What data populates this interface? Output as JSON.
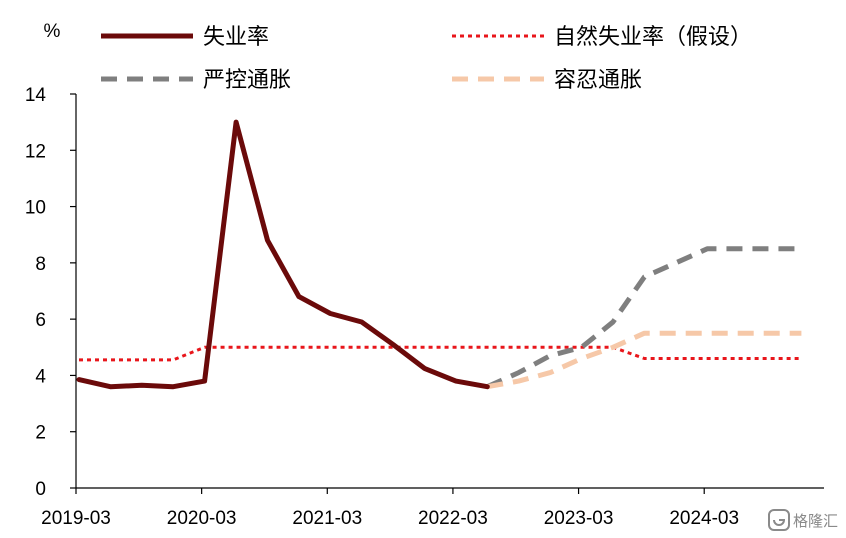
{
  "chart_data": {
    "type": "line",
    "unit_label": "%",
    "x": [
      "2019-03",
      "2019-06",
      "2019-09",
      "2019-12",
      "2020-03",
      "2020-06",
      "2020-09",
      "2020-12",
      "2021-03",
      "2021-06",
      "2021-09",
      "2021-12",
      "2022-03",
      "2022-06",
      "2022-09",
      "2022-12",
      "2023-03",
      "2023-06",
      "2023-09",
      "2023-12",
      "2024-03",
      "2024-06",
      "2024-09",
      "2024-12"
    ],
    "x_tick_labels": [
      "2019-03",
      "2020-03",
      "2021-03",
      "2022-03",
      "2023-03",
      "2024-03"
    ],
    "ylim": [
      0,
      14
    ],
    "y_ticks": [
      0,
      2,
      4,
      6,
      8,
      10,
      12,
      14
    ],
    "grid": false,
    "legend_position": "top",
    "series": [
      {
        "name": "失业率",
        "style": "solid",
        "color": "#6b0a0a",
        "values": [
          3.85,
          3.6,
          3.65,
          3.6,
          3.8,
          13.0,
          8.8,
          6.8,
          6.2,
          5.9,
          5.1,
          4.25,
          3.8,
          3.6,
          null,
          null,
          null,
          null,
          null,
          null,
          null,
          null,
          null,
          null
        ]
      },
      {
        "name": "自然失业率（假设）",
        "style": "dotted",
        "color": "#e8161b",
        "values": [
          4.55,
          4.55,
          4.55,
          4.55,
          5.0,
          5.0,
          5.0,
          5.0,
          5.0,
          5.0,
          5.0,
          5.0,
          5.0,
          5.0,
          5.0,
          5.0,
          5.0,
          5.0,
          4.6,
          4.6,
          4.6,
          4.6,
          4.6,
          4.6
        ]
      },
      {
        "name": "严控通胀",
        "style": "dashed",
        "color": "#7f7f7f",
        "values": [
          null,
          null,
          null,
          null,
          null,
          null,
          null,
          null,
          null,
          null,
          null,
          null,
          null,
          3.6,
          4.1,
          4.7,
          5.0,
          5.9,
          7.5,
          8.0,
          8.5,
          8.5,
          8.5,
          8.5
        ]
      },
      {
        "name": "容忍通胀",
        "style": "dashed",
        "color": "#f6c8a8",
        "values": [
          null,
          null,
          null,
          null,
          null,
          null,
          null,
          null,
          null,
          null,
          null,
          null,
          null,
          3.6,
          3.8,
          4.1,
          4.6,
          5.0,
          5.5,
          5.5,
          5.5,
          5.5,
          5.5,
          5.5
        ]
      }
    ]
  },
  "watermark": "格隆汇"
}
